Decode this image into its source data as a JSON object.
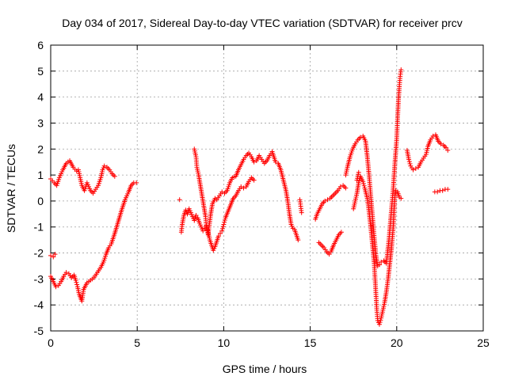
{
  "chart_data": {
    "type": "scatter",
    "title": "Day 034 of 2017, Sidereal Day-to-day VTEC variation (SDTVAR) for receiver prcv",
    "xlabel": "GPS time / hours",
    "ylabel": "SDTVAR / TECUs",
    "xlim": [
      0,
      25
    ],
    "ylim": [
      -5,
      6
    ],
    "xticks": [
      0,
      5,
      10,
      15,
      20,
      25
    ],
    "yticks": [
      -5,
      -4,
      -3,
      -2,
      -1,
      0,
      1,
      2,
      3,
      4,
      5,
      6
    ],
    "grid": true,
    "marker": "plus",
    "color": "#ff0000",
    "segments": [
      [
        [
          0.0,
          0.85
        ],
        [
          0.2,
          0.7
        ],
        [
          0.35,
          0.6
        ],
        [
          0.5,
          0.9
        ],
        [
          0.7,
          1.2
        ],
        [
          0.9,
          1.45
        ],
        [
          1.1,
          1.55
        ],
        [
          1.3,
          1.3
        ],
        [
          1.5,
          1.15
        ],
        [
          1.6,
          1.2
        ],
        [
          1.7,
          0.9
        ],
        [
          1.8,
          0.6
        ],
        [
          1.95,
          0.4
        ],
        [
          2.1,
          0.7
        ],
        [
          2.2,
          0.55
        ],
        [
          2.3,
          0.4
        ],
        [
          2.45,
          0.3
        ],
        [
          2.6,
          0.45
        ],
        [
          2.75,
          0.6
        ],
        [
          2.9,
          0.9
        ],
        [
          3.0,
          1.2
        ],
        [
          3.1,
          1.35
        ],
        [
          3.25,
          1.3
        ],
        [
          3.4,
          1.2
        ],
        [
          3.55,
          1.05
        ],
        [
          3.7,
          0.95
        ]
      ],
      [
        [
          0.0,
          -2.1
        ],
        [
          0.15,
          -2.15
        ],
        [
          0.25,
          -2.05
        ]
      ],
      [
        [
          0.0,
          -2.9
        ],
        [
          0.15,
          -3.1
        ],
        [
          0.3,
          -3.3
        ],
        [
          0.45,
          -3.25
        ],
        [
          0.6,
          -3.1
        ],
        [
          0.75,
          -2.9
        ],
        [
          0.9,
          -2.75
        ],
        [
          1.05,
          -2.8
        ],
        [
          1.2,
          -2.95
        ],
        [
          1.35,
          -2.85
        ],
        [
          1.45,
          -3.05
        ],
        [
          1.55,
          -3.3
        ],
        [
          1.65,
          -3.6
        ],
        [
          1.8,
          -3.85
        ],
        [
          1.9,
          -3.4
        ],
        [
          2.1,
          -3.15
        ],
        [
          2.3,
          -3.05
        ],
        [
          2.5,
          -2.95
        ],
        [
          2.7,
          -2.75
        ],
        [
          2.9,
          -2.55
        ],
        [
          3.05,
          -2.35
        ],
        [
          3.2,
          -2.05
        ],
        [
          3.35,
          -1.8
        ],
        [
          3.5,
          -1.65
        ],
        [
          3.7,
          -1.25
        ],
        [
          3.9,
          -0.8
        ],
        [
          4.1,
          -0.35
        ],
        [
          4.3,
          0.05
        ],
        [
          4.5,
          0.35
        ],
        [
          4.65,
          0.6
        ],
        [
          4.8,
          0.7
        ],
        [
          4.95,
          0.7
        ]
      ],
      [
        [
          7.55,
          -1.2
        ],
        [
          7.6,
          -0.9
        ],
        [
          7.7,
          -0.55
        ],
        [
          7.8,
          -0.35
        ],
        [
          7.9,
          -0.5
        ],
        [
          8.0,
          -0.3
        ],
        [
          8.1,
          -0.45
        ],
        [
          8.2,
          -0.6
        ],
        [
          8.3,
          -0.75
        ],
        [
          8.4,
          -0.55
        ],
        [
          8.5,
          -0.65
        ],
        [
          8.6,
          -0.85
        ],
        [
          8.7,
          -1.0
        ],
        [
          8.8,
          -1.15
        ],
        [
          8.9,
          -1.05
        ],
        [
          9.0,
          -0.95
        ],
        [
          9.1,
          -1.2
        ],
        [
          9.2,
          -1.5
        ],
        [
          9.3,
          -1.7
        ],
        [
          9.4,
          -1.9
        ],
        [
          9.5,
          -1.75
        ],
        [
          9.6,
          -1.55
        ],
        [
          9.7,
          -1.35
        ],
        [
          9.8,
          -1.25
        ],
        [
          9.9,
          -1.15
        ],
        [
          10.0,
          -0.9
        ],
        [
          10.1,
          -0.65
        ],
        [
          10.25,
          -0.4
        ],
        [
          10.4,
          -0.15
        ],
        [
          10.55,
          0.1
        ],
        [
          10.7,
          0.2
        ],
        [
          10.85,
          0.4
        ],
        [
          11.0,
          0.55
        ],
        [
          11.15,
          0.5
        ],
        [
          11.3,
          0.55
        ],
        [
          11.45,
          0.75
        ],
        [
          11.6,
          0.9
        ],
        [
          11.75,
          0.8
        ]
      ],
      [
        [
          8.3,
          2.0
        ],
        [
          8.4,
          1.7
        ],
        [
          8.45,
          1.3
        ],
        [
          8.55,
          1.0
        ],
        [
          8.65,
          0.6
        ],
        [
          8.75,
          0.2
        ],
        [
          8.85,
          -0.2
        ],
        [
          8.95,
          -0.6
        ],
        [
          9.0,
          -1.0
        ],
        [
          9.1,
          -1.3
        ],
        [
          9.15,
          -1.0
        ],
        [
          9.25,
          -0.5
        ],
        [
          9.35,
          -0.1
        ],
        [
          9.5,
          0.1
        ],
        [
          9.6,
          0.05
        ],
        [
          9.75,
          0.2
        ],
        [
          9.9,
          0.35
        ],
        [
          10.05,
          0.3
        ],
        [
          10.2,
          0.4
        ],
        [
          10.35,
          0.7
        ],
        [
          10.5,
          0.9
        ],
        [
          10.7,
          0.95
        ],
        [
          10.85,
          1.2
        ],
        [
          11.0,
          1.4
        ],
        [
          11.15,
          1.6
        ],
        [
          11.3,
          1.75
        ],
        [
          11.45,
          1.85
        ],
        [
          11.6,
          1.7
        ],
        [
          11.75,
          1.5
        ],
        [
          11.9,
          1.55
        ],
        [
          12.05,
          1.75
        ],
        [
          12.2,
          1.6
        ],
        [
          12.35,
          1.45
        ],
        [
          12.5,
          1.55
        ],
        [
          12.65,
          1.75
        ],
        [
          12.8,
          1.9
        ],
        [
          12.9,
          1.7
        ],
        [
          13.0,
          1.5
        ],
        [
          13.15,
          1.45
        ],
        [
          13.3,
          1.2
        ],
        [
          13.45,
          0.8
        ],
        [
          13.6,
          0.4
        ],
        [
          13.7,
          0.0
        ],
        [
          13.8,
          -0.5
        ],
        [
          13.9,
          -0.9
        ],
        [
          14.0,
          -1.05
        ],
        [
          14.1,
          -1.1
        ],
        [
          14.2,
          -1.3
        ],
        [
          14.3,
          -1.5
        ]
      ],
      [
        [
          14.4,
          0.05
        ],
        [
          14.45,
          -0.2
        ],
        [
          14.5,
          -0.45
        ]
      ],
      [
        [
          15.3,
          -0.7
        ],
        [
          15.4,
          -0.5
        ],
        [
          15.55,
          -0.3
        ],
        [
          15.7,
          -0.1
        ],
        [
          15.85,
          0.0
        ],
        [
          16.0,
          0.05
        ],
        [
          16.15,
          0.1
        ],
        [
          16.3,
          0.2
        ],
        [
          16.45,
          0.3
        ],
        [
          16.6,
          0.4
        ],
        [
          16.75,
          0.55
        ],
        [
          16.9,
          0.6
        ],
        [
          17.05,
          0.5
        ]
      ],
      [
        [
          15.5,
          -1.6
        ],
        [
          15.65,
          -1.7
        ],
        [
          15.8,
          -1.8
        ],
        [
          15.95,
          -1.95
        ],
        [
          16.1,
          -2.05
        ],
        [
          16.2,
          -1.95
        ],
        [
          16.35,
          -1.7
        ],
        [
          16.5,
          -1.5
        ],
        [
          16.65,
          -1.3
        ],
        [
          16.8,
          -1.2
        ]
      ],
      [
        [
          17.05,
          1.0
        ],
        [
          17.15,
          1.3
        ],
        [
          17.3,
          1.7
        ],
        [
          17.45,
          2.0
        ],
        [
          17.6,
          2.2
        ],
        [
          17.75,
          2.35
        ],
        [
          17.9,
          2.45
        ],
        [
          18.05,
          2.5
        ],
        [
          18.2,
          2.3
        ],
        [
          18.3,
          1.7
        ],
        [
          18.4,
          1.0
        ],
        [
          18.5,
          0.2
        ],
        [
          18.6,
          -0.6
        ],
        [
          18.7,
          -1.4
        ],
        [
          18.8,
          -2.1
        ],
        [
          18.9,
          -2.5
        ],
        [
          19.0,
          -2.45
        ],
        [
          19.1,
          -2.35
        ],
        [
          19.25,
          -2.3
        ],
        [
          19.4,
          -2.4
        ],
        [
          19.55,
          -1.5
        ],
        [
          19.7,
          -0.3
        ],
        [
          19.8,
          0.5
        ],
        [
          19.9,
          1.5
        ],
        [
          20.0,
          2.4
        ],
        [
          20.05,
          3.2
        ],
        [
          20.1,
          3.9
        ],
        [
          20.15,
          4.4
        ],
        [
          20.2,
          4.8
        ],
        [
          20.25,
          5.05
        ]
      ],
      [
        [
          17.5,
          -0.3
        ],
        [
          17.6,
          0.0
        ],
        [
          17.7,
          0.3
        ],
        [
          17.8,
          0.7
        ],
        [
          17.9,
          0.95
        ],
        [
          18.05,
          0.75
        ],
        [
          18.15,
          0.5
        ],
        [
          18.3,
          0.1
        ],
        [
          18.4,
          -0.4
        ],
        [
          18.5,
          -1.0
        ],
        [
          18.6,
          -1.7
        ],
        [
          18.7,
          -2.4
        ],
        [
          18.75,
          -3.0
        ],
        [
          18.8,
          -3.6
        ],
        [
          18.85,
          -4.2
        ],
        [
          18.9,
          -4.6
        ],
        [
          19.0,
          -4.75
        ],
        [
          19.1,
          -4.5
        ],
        [
          19.2,
          -4.2
        ],
        [
          19.3,
          -3.9
        ],
        [
          19.4,
          -3.5
        ],
        [
          19.5,
          -3.0
        ],
        [
          19.6,
          -2.4
        ],
        [
          19.7,
          -1.8
        ],
        [
          19.8,
          -1.0
        ],
        [
          19.85,
          -0.3
        ],
        [
          19.9,
          0.2
        ],
        [
          19.95,
          0.4
        ],
        [
          20.05,
          0.35
        ],
        [
          20.15,
          0.15
        ],
        [
          20.25,
          0.1
        ]
      ],
      [
        [
          20.6,
          1.95
        ],
        [
          20.7,
          1.6
        ],
        [
          20.8,
          1.35
        ],
        [
          20.95,
          1.2
        ],
        [
          21.1,
          1.25
        ],
        [
          21.25,
          1.3
        ],
        [
          21.4,
          1.5
        ],
        [
          21.55,
          1.65
        ],
        [
          21.7,
          1.8
        ],
        [
          21.8,
          2.1
        ],
        [
          21.95,
          2.35
        ],
        [
          22.1,
          2.5
        ],
        [
          22.25,
          2.55
        ],
        [
          22.4,
          2.3
        ],
        [
          22.55,
          2.2
        ],
        [
          22.7,
          2.15
        ],
        [
          22.85,
          2.05
        ],
        [
          22.95,
          1.95
        ]
      ],
      [
        [
          22.2,
          0.35
        ],
        [
          22.35,
          0.35
        ],
        [
          22.5,
          0.4
        ],
        [
          22.65,
          0.4
        ],
        [
          22.8,
          0.45
        ],
        [
          22.95,
          0.45
        ]
      ],
      [
        [
          7.45,
          0.05
        ]
      ],
      [
        [
          17.7,
          0.8
        ],
        [
          17.8,
          1.1
        ]
      ]
    ]
  }
}
